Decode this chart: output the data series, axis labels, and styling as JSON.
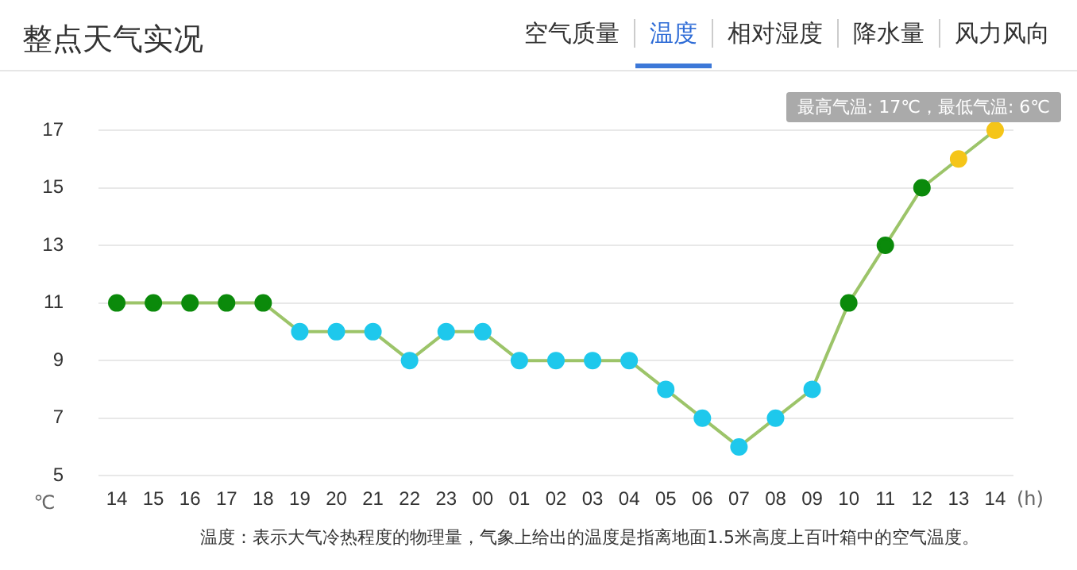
{
  "chart_data": {
    "type": "line",
    "title": "整点天气实况",
    "xlabel": "(h)",
    "ylabel": "℃",
    "categories": [
      "14",
      "15",
      "16",
      "17",
      "18",
      "19",
      "20",
      "21",
      "22",
      "23",
      "00",
      "01",
      "02",
      "03",
      "04",
      "05",
      "06",
      "07",
      "08",
      "09",
      "10",
      "11",
      "12",
      "13",
      "14"
    ],
    "series": [
      {
        "color": "#9cc469",
        "colors": [
          "#0b8a0b",
          "#0b8a0b",
          "#0b8a0b",
          "#0b8a0b",
          "#0b8a0b",
          "#1ec8ec",
          "#1ec8ec",
          "#1ec8ec",
          "#1ec8ec",
          "#1ec8ec",
          "#1ec8ec",
          "#1ec8ec",
          "#1ec8ec",
          "#1ec8ec",
          "#1ec8ec",
          "#1ec8ec",
          "#1ec8ec",
          "#1ec8ec",
          "#1ec8ec",
          "#1ec8ec",
          "#0b8a0b",
          "#0b8a0b",
          "#0b8a0b",
          "#f5c518",
          "#f5c518"
        ],
        "values": [
          11,
          11,
          11,
          11,
          11,
          10,
          10,
          10,
          9,
          10,
          10,
          9,
          9,
          9,
          9,
          8,
          7,
          6,
          7,
          8,
          11,
          13,
          15,
          16,
          17
        ]
      }
    ],
    "ylim": [
      5,
      17
    ],
    "yticks": [
      5,
      7,
      9,
      11,
      13,
      15,
      17
    ],
    "grid": "y",
    "legend": false,
    "marker": "circle",
    "line_style": "solid",
    "annotations": [
      "空气质量",
      "温度",
      "相对湿度",
      "降水量",
      "风力风向",
      "最高气温: 17℃，最低气温: 6℃",
      "温度：表示大气冷热程度的物理量，气象上给出的温度是指离地面1.5米高度上百叶箱中的空气温度。"
    ]
  }
}
